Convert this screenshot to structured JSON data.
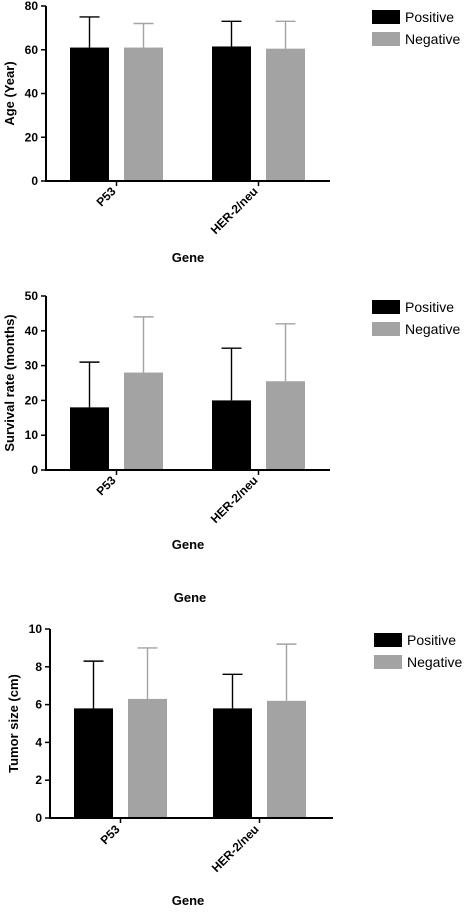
{
  "chart_data": [
    {
      "type": "bar",
      "categories": [
        "P53",
        "HER-2/neu"
      ],
      "series": [
        {
          "name": "Positive",
          "values": [
            61,
            61.5
          ],
          "error": [
            14,
            11.5
          ]
        },
        {
          "name": "Negative",
          "values": [
            61,
            60.5
          ],
          "error": [
            11,
            12.5
          ]
        }
      ],
      "xlabel": "Gene",
      "ylabel": "Age (Year)",
      "ylim": [
        0,
        80
      ],
      "yticks": [
        0,
        20,
        40,
        60,
        80
      ],
      "legend": "top-right",
      "grid": false,
      "colors": [
        "#000000",
        "#a3a3a3"
      ]
    },
    {
      "type": "bar",
      "categories": [
        "P53",
        "HER-2/neu"
      ],
      "series": [
        {
          "name": "Positive",
          "values": [
            18,
            20
          ],
          "error": [
            13,
            15
          ]
        },
        {
          "name": "Negative",
          "values": [
            28,
            25.5
          ],
          "error": [
            16,
            16.5
          ]
        }
      ],
      "xlabel": "Gene",
      "ylabel": "Survival rate (months)",
      "ylim": [
        0,
        50
      ],
      "yticks": [
        0,
        10,
        20,
        30,
        40,
        50
      ],
      "legend": "top-right",
      "grid": false,
      "colors": [
        "#000000",
        "#a3a3a3"
      ]
    },
    {
      "type": "bar",
      "categories": [
        "P53",
        "HER-2/neu"
      ],
      "series": [
        {
          "name": "Positive",
          "values": [
            5.8,
            5.8
          ],
          "error": [
            2.5,
            1.8
          ]
        },
        {
          "name": "Negative",
          "values": [
            6.3,
            6.2
          ],
          "error": [
            2.7,
            3.0
          ]
        }
      ],
      "xlabel": "Gene",
      "ylabel": "Tumor size (cm)",
      "ylim": [
        0,
        10
      ],
      "yticks": [
        0,
        2,
        4,
        6,
        8,
        10
      ],
      "legend": "top-right",
      "grid": false,
      "colors": [
        "#000000",
        "#a3a3a3"
      ]
    }
  ],
  "extra_label": "Gene"
}
